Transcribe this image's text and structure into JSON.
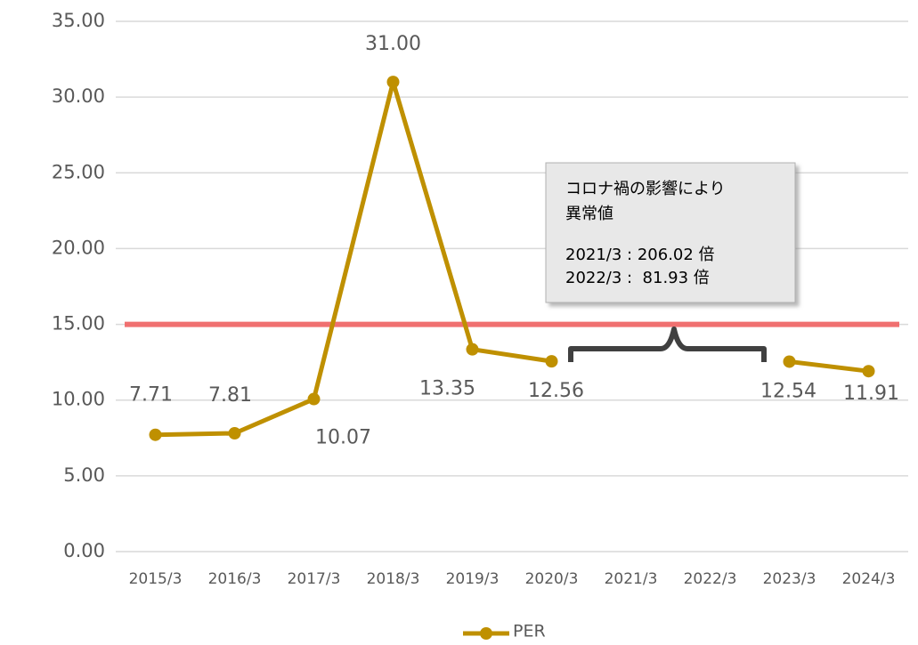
{
  "chart_data": {
    "type": "line",
    "categories": [
      "2015/3",
      "2016/3",
      "2017/3",
      "2018/3",
      "2019/3",
      "2020/3",
      "2021/3",
      "2022/3",
      "2023/3",
      "2024/3"
    ],
    "series": [
      {
        "name": "PER",
        "color": "#bf9000",
        "values": [
          7.71,
          7.81,
          10.07,
          31.0,
          13.35,
          12.56,
          null,
          null,
          12.54,
          11.91
        ],
        "value_labels": [
          "7.71",
          "7.81",
          "10.07",
          "31.00",
          "13.35",
          "12.56",
          null,
          null,
          "12.54",
          "11.91"
        ]
      }
    ],
    "ylim": [
      0,
      35
    ],
    "yticks": [
      {
        "value": 0,
        "label": "0.00"
      },
      {
        "value": 5,
        "label": "5.00"
      },
      {
        "value": 10,
        "label": "10.00"
      },
      {
        "value": 15,
        "label": "15.00"
      },
      {
        "value": 20,
        "label": "20.00"
      },
      {
        "value": 25,
        "label": "25.00"
      },
      {
        "value": 30,
        "label": "30.00"
      },
      {
        "value": 35,
        "label": "35.00"
      }
    ],
    "grid": true,
    "reference_line": {
      "value": 15,
      "color": "#f07070"
    },
    "annotation": {
      "lines": [
        "コロナ禍の影響により",
        "異常値",
        "2021/3 : 206.02 倍",
        "2022/3 :  81.93 倍"
      ]
    },
    "legend": "bottom"
  }
}
